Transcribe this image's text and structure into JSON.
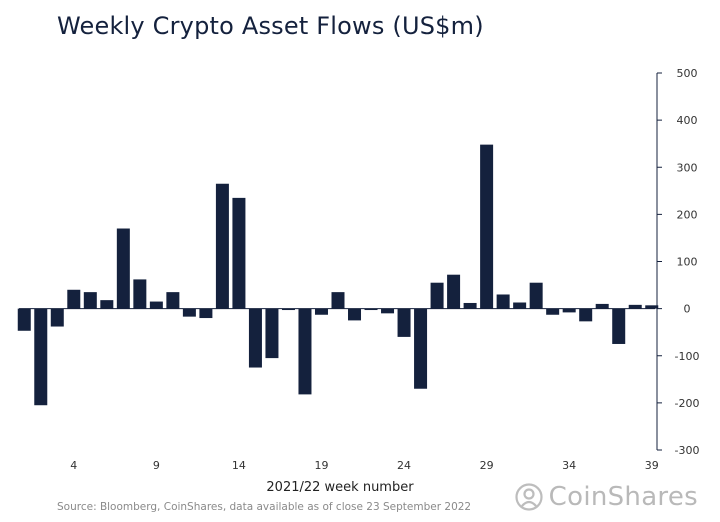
{
  "chart_data": {
    "type": "bar",
    "title": "Weekly Crypto Asset Flows (US$m)",
    "xlabel": "2021/22 week number",
    "ylabel": "",
    "ylim": [
      -300,
      500
    ],
    "y_ticks": [
      500,
      400,
      300,
      200,
      100,
      0,
      -100,
      -200,
      -300
    ],
    "x_ticks": [
      4,
      9,
      14,
      19,
      24,
      29,
      34,
      39
    ],
    "categories": [
      1,
      2,
      3,
      4,
      5,
      6,
      7,
      8,
      9,
      10,
      11,
      12,
      13,
      14,
      15,
      16,
      17,
      18,
      19,
      20,
      21,
      22,
      23,
      24,
      25,
      26,
      27,
      28,
      29,
      30,
      31,
      32,
      33,
      34,
      35,
      36,
      37,
      38,
      39
    ],
    "values": [
      -47,
      -205,
      -38,
      40,
      35,
      18,
      170,
      62,
      15,
      35,
      -17,
      -20,
      265,
      235,
      -125,
      -105,
      -3,
      -182,
      -13,
      35,
      -25,
      -3,
      -10,
      -60,
      -170,
      55,
      72,
      12,
      348,
      30,
      13,
      55,
      -13,
      -8,
      -27,
      10,
      -75,
      8,
      7
    ],
    "color": "#14213d",
    "axis_side": "right"
  },
  "footer": {
    "source": "Source: Bloomberg, CoinShares, data available as of close 23 September 2022"
  },
  "brand": {
    "name": "CoinShares",
    "icon": "coinshares-logo-icon"
  }
}
